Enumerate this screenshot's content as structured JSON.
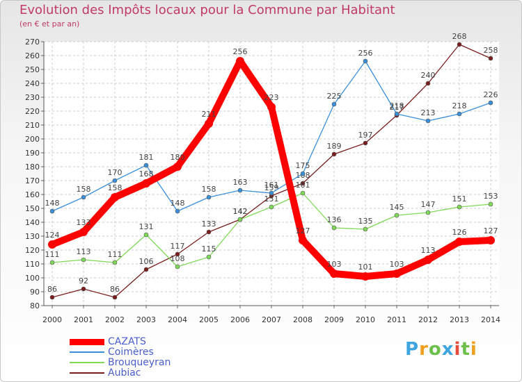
{
  "chart_data": {
    "type": "line",
    "title": "Evolution des Impôts locaux pour la Commune par Habitant",
    "subtitle": "(en € et par an)",
    "xlabel": "",
    "ylabel": "",
    "x": [
      "2000",
      "2001",
      "2002",
      "2003",
      "2004",
      "2005",
      "2006",
      "2007",
      "2008",
      "2009",
      "2010",
      "2011",
      "2012",
      "2013",
      "2014"
    ],
    "ylim": [
      80,
      270
    ],
    "yticks": [
      80,
      90,
      100,
      110,
      120,
      130,
      140,
      150,
      160,
      170,
      180,
      190,
      200,
      210,
      220,
      230,
      240,
      250,
      260,
      270
    ],
    "grid": true,
    "legend_position": "bottom-left",
    "series": [
      {
        "name": "CAZATS",
        "color": "#ff0000",
        "values": [
          124,
          133,
          158,
          168,
          180,
          211,
          256,
          223,
          127,
          103,
          101,
          103,
          113,
          126,
          127
        ]
      },
      {
        "name": "Coimères",
        "color": "#3a8fd9",
        "values": [
          148,
          158,
          170,
          181,
          148,
          158,
          163,
          161,
          175,
          225,
          256,
          218,
          213,
          218,
          226
        ]
      },
      {
        "name": "Brouqueyran",
        "color": "#7ed957",
        "values": [
          111,
          113,
          111,
          131,
          108,
          115,
          142,
          151,
          161,
          136,
          135,
          145,
          147,
          151,
          153
        ]
      },
      {
        "name": "Aubiac",
        "color": "#7a1d1d",
        "values": [
          86,
          92,
          86,
          106,
          117,
          133,
          142,
          159,
          168,
          189,
          197,
          217,
          240,
          268,
          258
        ]
      }
    ]
  },
  "logo": {
    "letters": [
      "P",
      "r",
      "o",
      "x",
      "i",
      "t",
      "i"
    ],
    "colors": [
      "#3fa5e0",
      "#f0a020",
      "#6cc04a",
      "#3fa5e0",
      "#e84c3d",
      "#6cc04a",
      "#f0a020"
    ]
  }
}
